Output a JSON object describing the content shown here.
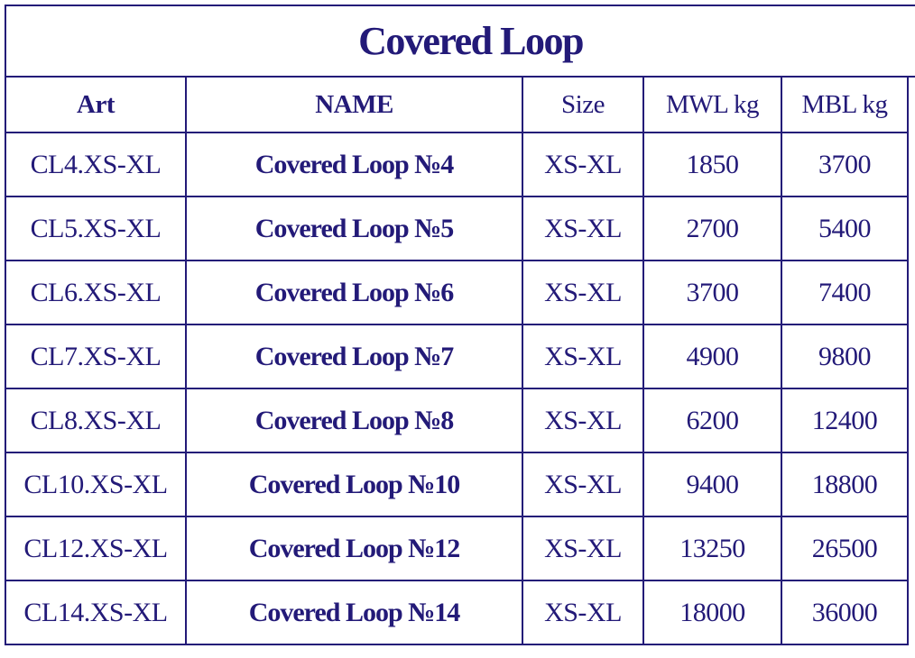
{
  "table": {
    "title": "Covered Loop",
    "columns": [
      "Art",
      "NAME",
      "Size",
      "MWL kg",
      "MBL kg"
    ],
    "rows": [
      [
        "CL4.XS-XL",
        "Covered Loop №4",
        "XS-XL",
        1850,
        3700
      ],
      [
        "CL5.XS-XL",
        "Covered Loop №5",
        "XS-XL",
        2700,
        5400
      ],
      [
        "CL6.XS-XL",
        "Covered Loop №6",
        "XS-XL",
        3700,
        7400
      ],
      [
        "CL7.XS-XL",
        "Covered Loop №7",
        "XS-XL",
        4900,
        9800
      ],
      [
        "CL8.XS-XL",
        "Covered Loop №8",
        "XS-XL",
        6200,
        12400
      ],
      [
        "CL10.XS-XL",
        "Covered Loop №10",
        "XS-XL",
        9400,
        18800
      ],
      [
        "CL12.XS-XL",
        "Covered Loop №12",
        "XS-XL",
        13250,
        26500
      ],
      [
        "CL14.XS-XL",
        "Covered Loop №14",
        "XS-XL",
        18000,
        36000
      ]
    ]
  }
}
